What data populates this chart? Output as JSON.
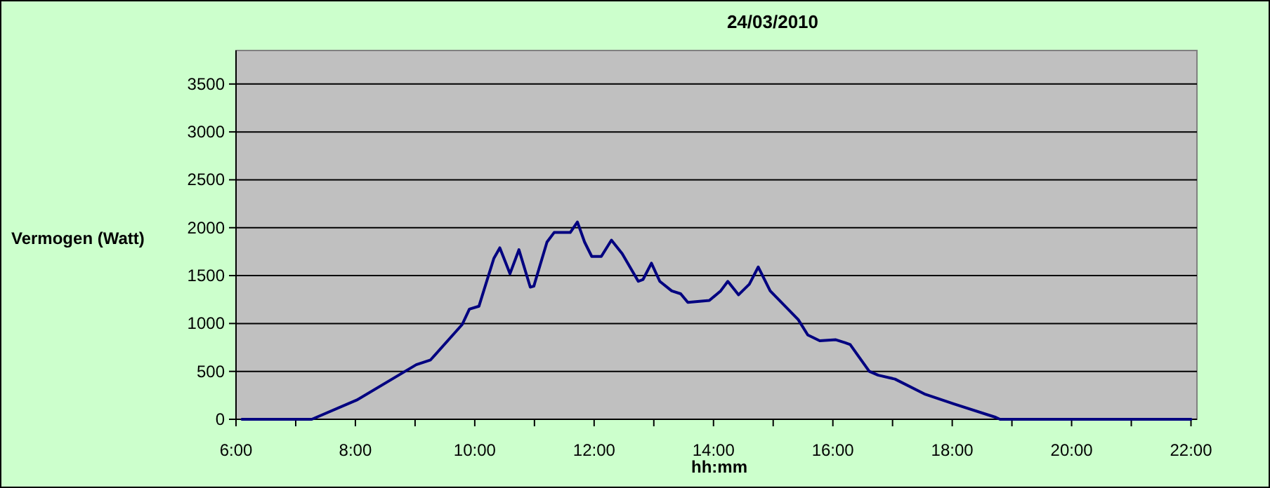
{
  "chart_data": {
    "type": "line",
    "title": "24/03/2010",
    "xlabel": "hh:mm",
    "ylabel": "Vermogen (Watt)",
    "x": [
      6.1,
      7.27,
      8.02,
      9.02,
      9.26,
      9.79,
      9.91,
      10.07,
      10.16,
      10.32,
      10.42,
      10.59,
      10.74,
      10.93,
      10.99,
      11.21,
      11.33,
      11.6,
      11.72,
      11.84,
      11.96,
      12.12,
      12.29,
      12.47,
      12.74,
      12.82,
      12.96,
      13.1,
      13.3,
      13.45,
      13.57,
      13.93,
      14.12,
      14.24,
      14.42,
      14.6,
      14.75,
      14.95,
      15.42,
      15.58,
      15.78,
      16.05,
      16.2,
      16.29,
      16.61,
      16.76,
      17.04,
      17.55,
      18.03,
      18.73,
      18.8,
      22
    ],
    "series": [
      {
        "color": "#000080",
        "values": [
          0,
          0,
          200,
          570,
          620,
          990,
          1150,
          1180,
          1360,
          1680,
          1790,
          1520,
          1770,
          1380,
          1390,
          1850,
          1950,
          1950,
          2060,
          1850,
          1700,
          1700,
          1870,
          1730,
          1440,
          1460,
          1630,
          1440,
          1340,
          1310,
          1220,
          1240,
          1340,
          1440,
          1300,
          1410,
          1590,
          1340,
          1040,
          880,
          820,
          830,
          800,
          780,
          500,
          460,
          420,
          260,
          160,
          20,
          0,
          0
        ]
      }
    ],
    "xlim": [
      6,
      22.1
    ],
    "xticks": [
      {
        "value": 6,
        "label": "6:00"
      },
      {
        "value": 7,
        "label": null
      },
      {
        "value": 8,
        "label": "8:00"
      },
      {
        "value": 9,
        "label": null
      },
      {
        "value": 10,
        "label": "10:00"
      },
      {
        "value": 11,
        "label": null
      },
      {
        "value": 12,
        "label": "12:00"
      },
      {
        "value": 13,
        "label": null
      },
      {
        "value": 14,
        "label": "14:00"
      },
      {
        "value": 15,
        "label": null
      },
      {
        "value": 16,
        "label": "16:00"
      },
      {
        "value": 17,
        "label": null
      },
      {
        "value": 18,
        "label": "18:00"
      },
      {
        "value": 19,
        "label": null
      },
      {
        "value": 20,
        "label": "20:00"
      },
      {
        "value": 21,
        "label": null
      },
      {
        "value": 22,
        "label": "22:00"
      }
    ],
    "ylim": [
      0,
      3850
    ],
    "yticks": [
      0,
      500,
      1000,
      1500,
      2000,
      2500,
      3000,
      3500
    ],
    "grid": "y",
    "marker": "none",
    "line_style": "solid"
  }
}
